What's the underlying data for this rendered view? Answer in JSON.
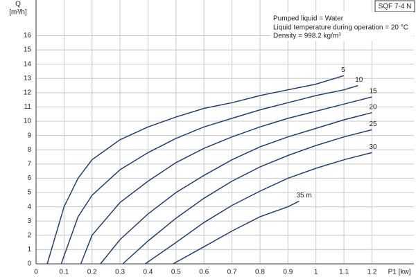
{
  "chart_data": {
    "type": "line",
    "model": "SQF 7-4 N",
    "notes": [
      "Pumped liquid = Water",
      "Liquid temperature during operation = 20 °C",
      "Density = 998.2 kg/m³"
    ],
    "y_label": [
      "Q",
      "[m³/h]"
    ],
    "x_label": "P1 [kw]",
    "xlim": [
      0,
      1.35
    ],
    "ylim": [
      0,
      18.5
    ],
    "xticks": [
      0,
      0.1,
      0.2,
      0.3,
      0.4,
      0.5,
      0.6,
      0.7,
      0.8,
      0.9,
      1.0,
      1.1,
      1.2
    ],
    "yticks": [
      0,
      1,
      2,
      3,
      4,
      5,
      6,
      7,
      8,
      9,
      10,
      11,
      12,
      13,
      14,
      15,
      16
    ],
    "grid": true,
    "series": [
      {
        "name": "5",
        "color": "#1f3f73",
        "x": [
          0.04,
          0.1,
          0.15,
          0.2,
          0.3,
          0.4,
          0.5,
          0.6,
          0.7,
          0.8,
          0.9,
          1.0,
          1.1
        ],
        "values": [
          0,
          4,
          6,
          7.3,
          8.7,
          9.6,
          10.3,
          10.9,
          11.3,
          11.8,
          12.2,
          12.6,
          13.2
        ]
      },
      {
        "name": "10",
        "color": "#1f3f73",
        "x": [
          0.09,
          0.15,
          0.2,
          0.3,
          0.4,
          0.5,
          0.6,
          0.7,
          0.8,
          0.9,
          1.0,
          1.1,
          1.15
        ],
        "values": [
          0,
          3.3,
          4.8,
          6.6,
          7.8,
          8.8,
          9.6,
          10.2,
          10.8,
          11.3,
          11.8,
          12.2,
          12.5
        ]
      },
      {
        "name": "15",
        "color": "#1f3f73",
        "x": [
          0.16,
          0.2,
          0.3,
          0.4,
          0.5,
          0.6,
          0.7,
          0.8,
          0.9,
          1.0,
          1.1,
          1.2
        ],
        "values": [
          0,
          2,
          4.3,
          5.8,
          7.1,
          8.1,
          8.9,
          9.6,
          10.2,
          10.7,
          11.2,
          11.7
        ]
      },
      {
        "name": "20",
        "color": "#1f3f73",
        "x": [
          0.23,
          0.3,
          0.4,
          0.5,
          0.6,
          0.7,
          0.8,
          0.9,
          1.0,
          1.1,
          1.2
        ],
        "values": [
          0,
          1.7,
          3.5,
          5,
          6.2,
          7.3,
          8.2,
          8.9,
          9.5,
          10.1,
          10.6
        ]
      },
      {
        "name": "25",
        "color": "#1f3f73",
        "x": [
          0.31,
          0.4,
          0.5,
          0.6,
          0.7,
          0.8,
          0.9,
          1.0,
          1.1,
          1.2
        ],
        "values": [
          0,
          1.6,
          3.2,
          4.6,
          5.8,
          6.8,
          7.6,
          8.3,
          8.9,
          9.4
        ]
      },
      {
        "name": "30",
        "color": "#1f3f73",
        "x": [
          0.39,
          0.5,
          0.6,
          0.7,
          0.8,
          0.9,
          1.0,
          1.1,
          1.2
        ],
        "values": [
          0,
          1.5,
          2.9,
          4.1,
          5.1,
          6,
          6.7,
          7.3,
          7.8
        ]
      },
      {
        "name": "35 m",
        "color": "#1f3f73",
        "x": [
          0.49,
          0.6,
          0.7,
          0.8,
          0.9,
          0.94
        ],
        "values": [
          0,
          1.2,
          2.3,
          3.3,
          4,
          4.4
        ]
      }
    ]
  }
}
